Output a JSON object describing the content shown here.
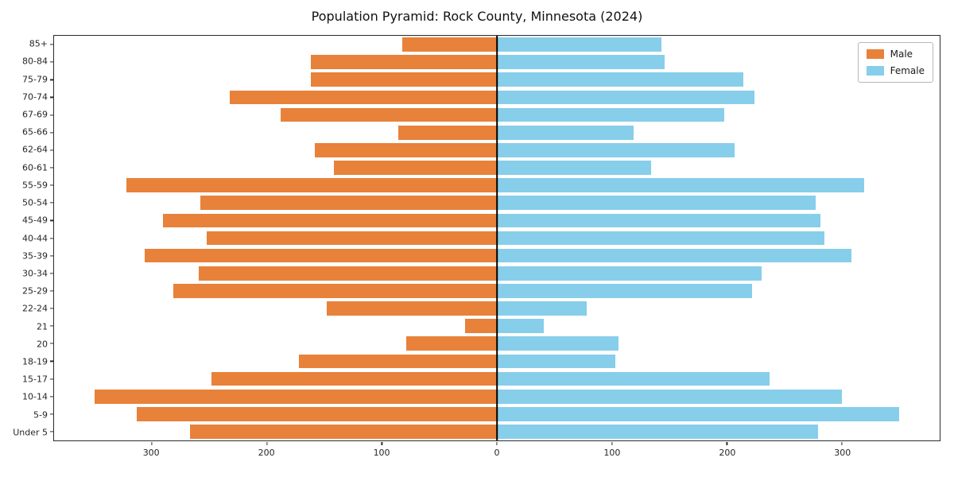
{
  "title": "Population Pyramid: Rock County, Minnesota (2024)",
  "chart_data": {
    "type": "bar",
    "orientation": "horizontal",
    "subtype": "population-pyramid",
    "title": "Population Pyramid: Rock County, Minnesota (2024)",
    "categories_top_to_bottom": [
      "85+",
      "80-84",
      "75-79",
      "70-74",
      "67-69",
      "65-66",
      "62-64",
      "60-61",
      "55-59",
      "50-54",
      "45-49",
      "40-44",
      "35-39",
      "30-34",
      "25-29",
      "22-24",
      "21",
      "20",
      "18-19",
      "15-17",
      "10-14",
      "5-9",
      "Under 5"
    ],
    "series": [
      {
        "name": "Male",
        "side": "left",
        "color": "#e8813a",
        "values": [
          82,
          162,
          162,
          232,
          188,
          86,
          158,
          142,
          322,
          258,
          290,
          252,
          306,
          259,
          281,
          148,
          28,
          79,
          172,
          248,
          350,
          313,
          267
        ]
      },
      {
        "name": "Female",
        "side": "right",
        "color": "#87ceeb",
        "values": [
          143,
          146,
          214,
          224,
          198,
          119,
          207,
          134,
          319,
          277,
          281,
          285,
          308,
          230,
          222,
          78,
          41,
          106,
          103,
          237,
          300,
          350,
          279
        ]
      }
    ],
    "x_ticks": [
      -300,
      -200,
      -100,
      0,
      100,
      200,
      300
    ],
    "x_tick_labels": [
      "300",
      "200",
      "100",
      "0",
      "100",
      "200",
      "300"
    ],
    "xlim": [
      -385,
      385
    ],
    "grid": false,
    "legend_position": "upper right",
    "axis_color": "#2b2b2b"
  }
}
